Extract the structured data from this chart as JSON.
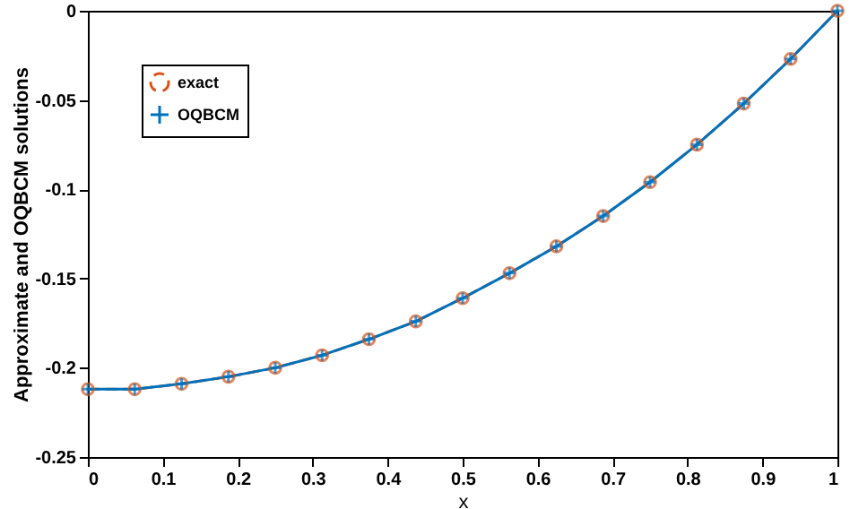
{
  "chart_data": {
    "type": "line",
    "xlabel": "x",
    "ylabel": "Approximate and OQBCM solutions",
    "x": [
      0,
      0.0625,
      0.125,
      0.1875,
      0.25,
      0.3125,
      0.375,
      0.4375,
      0.5,
      0.5625,
      0.625,
      0.6875,
      0.75,
      0.8125,
      0.875,
      0.9375,
      1
    ],
    "series": [
      {
        "name": "exact",
        "color": "#d95319",
        "marker": "circle",
        "line_style": "dashed",
        "values": [
          -0.212,
          -0.212,
          -0.209,
          -0.205,
          -0.2,
          -0.193,
          -0.184,
          -0.174,
          -0.161,
          -0.147,
          -0.132,
          -0.115,
          -0.096,
          -0.075,
          -0.052,
          -0.027,
          0
        ]
      },
      {
        "name": "OQBCM",
        "color": "#0072bd",
        "marker": "cross",
        "line_style": "solid",
        "values": [
          -0.212,
          -0.212,
          -0.209,
          -0.205,
          -0.2,
          -0.193,
          -0.184,
          -0.174,
          -0.161,
          -0.147,
          -0.132,
          -0.115,
          -0.096,
          -0.075,
          -0.052,
          -0.027,
          0
        ]
      }
    ],
    "xlim": [
      0,
      1
    ],
    "xticks": [
      0,
      0.1,
      0.2,
      0.3,
      0.4,
      0.5,
      0.6,
      0.7,
      0.8,
      0.9,
      1
    ],
    "ylim": [
      -0.25,
      0
    ],
    "yticks": [
      -0.25,
      -0.2,
      -0.15,
      -0.1,
      -0.05,
      0
    ],
    "grid": false,
    "legend": "top left"
  }
}
